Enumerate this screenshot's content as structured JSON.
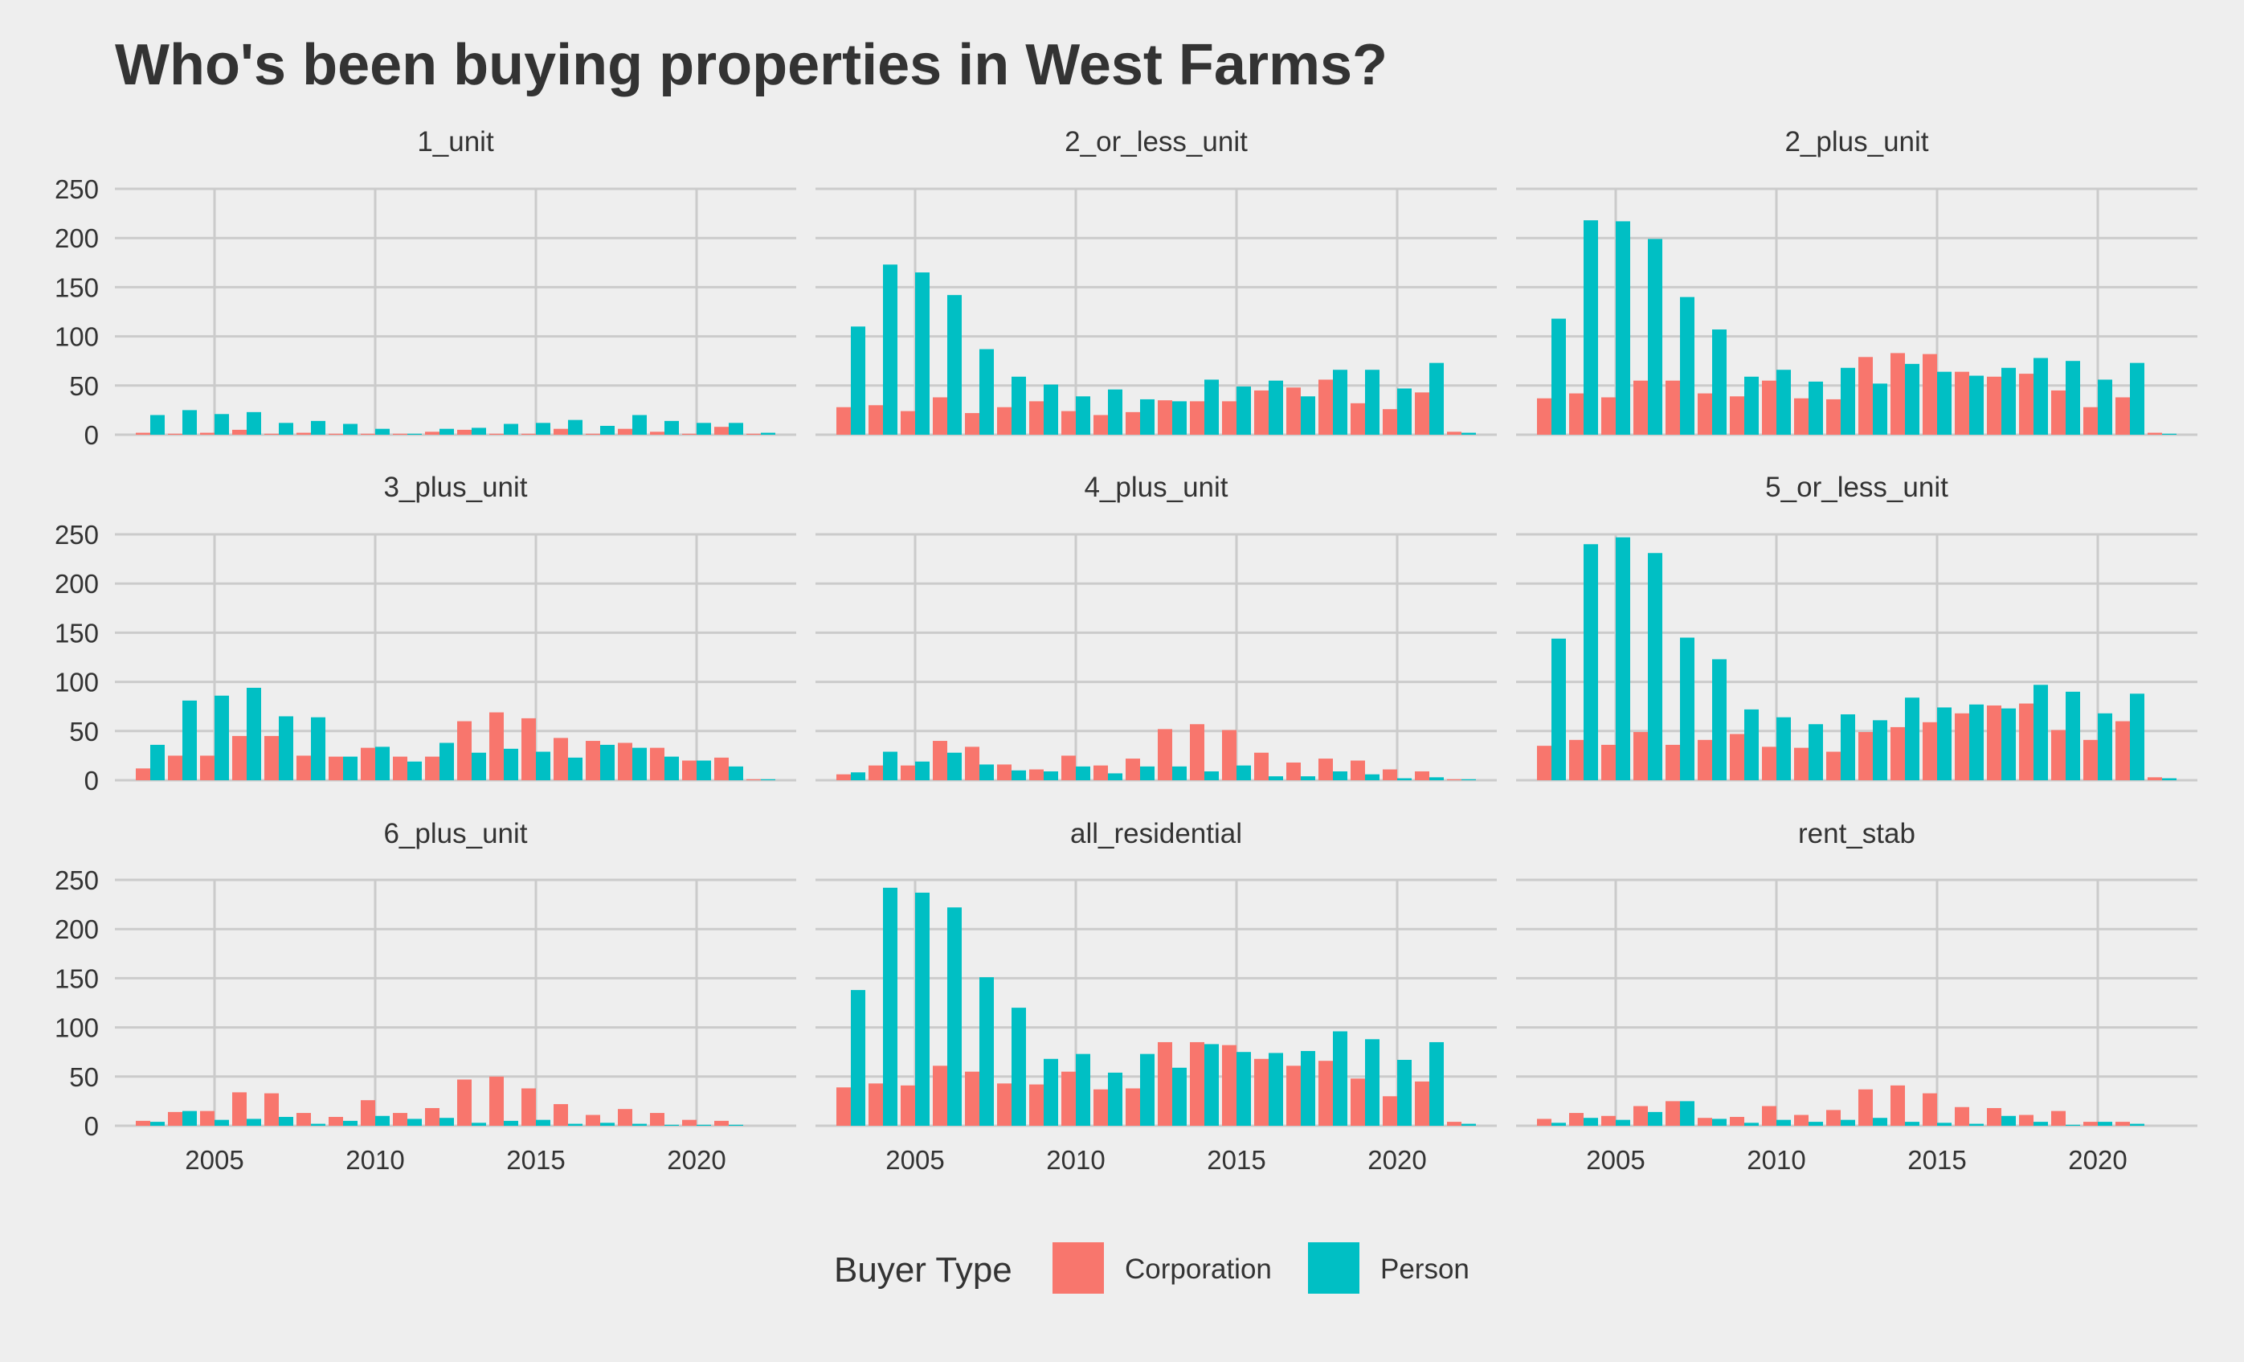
{
  "chart_data": {
    "type": "bar",
    "title": "Who's been buying properties in West Farms?",
    "legend": {
      "title": "Buyer Type",
      "position": "bottom",
      "entries": [
        {
          "name": "Corporation",
          "color": "#f8766d"
        },
        {
          "name": "Person",
          "color": "#00bfc4"
        }
      ]
    },
    "x": [
      2003,
      2004,
      2005,
      2006,
      2007,
      2008,
      2009,
      2010,
      2011,
      2012,
      2013,
      2014,
      2015,
      2016,
      2017,
      2018,
      2019,
      2020,
      2021,
      2022
    ],
    "xlim": [
      2001.9,
      2023.1
    ],
    "ylim": [
      0,
      250
    ],
    "x_ticks": [
      2005,
      2010,
      2015,
      2020
    ],
    "y_ticks": [
      0,
      50,
      100,
      150,
      200,
      250
    ],
    "grid": true,
    "facets": [
      {
        "name": "1_unit",
        "series": [
          {
            "name": "Corporation",
            "values": [
              2,
              1,
              2,
              5,
              1,
              2,
              1,
              1,
              1,
              3,
              5,
              1,
              1,
              6,
              1,
              6,
              3,
              1,
              8,
              1
            ]
          },
          {
            "name": "Person",
            "values": [
              20,
              25,
              21,
              23,
              12,
              14,
              11,
              6,
              1,
              6,
              7,
              11,
              12,
              15,
              9,
              20,
              14,
              12,
              12,
              2
            ]
          }
        ]
      },
      {
        "name": "2_or_less_unit",
        "series": [
          {
            "name": "Corporation",
            "values": [
              28,
              30,
              24,
              38,
              22,
              28,
              34,
              24,
              20,
              23,
              35,
              34,
              34,
              45,
              48,
              56,
              32,
              26,
              43,
              3
            ]
          },
          {
            "name": "Person",
            "values": [
              110,
              173,
              165,
              142,
              87,
              59,
              51,
              39,
              46,
              36,
              34,
              56,
              49,
              55,
              39,
              66,
              66,
              47,
              73,
              2
            ]
          }
        ]
      },
      {
        "name": "2_plus_unit",
        "series": [
          {
            "name": "Corporation",
            "values": [
              37,
              42,
              38,
              55,
              55,
              42,
              39,
              55,
              37,
              36,
              79,
              83,
              82,
              64,
              59,
              62,
              45,
              28,
              38,
              2
            ]
          },
          {
            "name": "Person",
            "values": [
              118,
              218,
              217,
              199,
              140,
              107,
              59,
              66,
              54,
              68,
              52,
              72,
              64,
              60,
              68,
              78,
              75,
              56,
              73,
              1
            ]
          }
        ]
      },
      {
        "name": "3_plus_unit",
        "series": [
          {
            "name": "Corporation",
            "values": [
              12,
              25,
              25,
              45,
              45,
              25,
              24,
              33,
              24,
              24,
              60,
              69,
              63,
              43,
              40,
              38,
              33,
              20,
              23,
              1
            ]
          },
          {
            "name": "Person",
            "values": [
              36,
              81,
              86,
              94,
              65,
              64,
              24,
              34,
              19,
              38,
              28,
              32,
              29,
              23,
              36,
              33,
              24,
              20,
              14,
              1
            ]
          }
        ]
      },
      {
        "name": "4_plus_unit",
        "series": [
          {
            "name": "Corporation",
            "values": [
              6,
              15,
              15,
              40,
              34,
              16,
              11,
              25,
              15,
              22,
              52,
              57,
              51,
              28,
              18,
              22,
              20,
              11,
              9,
              1
            ]
          },
          {
            "name": "Person",
            "values": [
              8,
              29,
              19,
              28,
              16,
              10,
              9,
              14,
              7,
              14,
              14,
              9,
              15,
              4,
              4,
              9,
              6,
              2,
              3,
              1
            ]
          }
        ]
      },
      {
        "name": "5_or_less_unit",
        "series": [
          {
            "name": "Corporation",
            "values": [
              35,
              41,
              36,
              49,
              36,
              41,
              47,
              34,
              33,
              29,
              49,
              54,
              59,
              68,
              76,
              78,
              51,
              41,
              60,
              3
            ]
          },
          {
            "name": "Person",
            "values": [
              144,
              240,
              247,
              231,
              145,
              123,
              72,
              64,
              57,
              67,
              61,
              84,
              74,
              77,
              73,
              97,
              90,
              68,
              88,
              2
            ]
          }
        ]
      },
      {
        "name": "6_plus_unit",
        "series": [
          {
            "name": "Corporation",
            "values": [
              5,
              14,
              15,
              34,
              33,
              13,
              9,
              26,
              13,
              18,
              47,
              50,
              38,
              22,
              11,
              17,
              13,
              6,
              5,
              0
            ]
          },
          {
            "name": "Person",
            "values": [
              4,
              15,
              6,
              7,
              9,
              2,
              5,
              10,
              7,
              8,
              3,
              5,
              6,
              2,
              3,
              2,
              1,
              1,
              1,
              0
            ]
          }
        ]
      },
      {
        "name": "all_residential",
        "series": [
          {
            "name": "Corporation",
            "values": [
              39,
              43,
              41,
              61,
              55,
              43,
              42,
              55,
              37,
              38,
              85,
              85,
              82,
              68,
              61,
              66,
              48,
              30,
              45,
              4
            ]
          },
          {
            "name": "Person",
            "values": [
              138,
              242,
              237,
              222,
              151,
              120,
              68,
              73,
              54,
              73,
              59,
              83,
              75,
              74,
              76,
              96,
              88,
              67,
              85,
              2
            ]
          }
        ]
      },
      {
        "name": "rent_stab",
        "series": [
          {
            "name": "Corporation",
            "values": [
              7,
              13,
              10,
              20,
              25,
              8,
              9,
              20,
              11,
              16,
              37,
              41,
              33,
              19,
              18,
              11,
              15,
              4,
              4,
              0
            ]
          },
          {
            "name": "Person",
            "values": [
              3,
              8,
              6,
              14,
              25,
              7,
              3,
              6,
              4,
              6,
              8,
              4,
              3,
              2,
              10,
              4,
              1,
              4,
              2,
              0
            ]
          }
        ]
      }
    ]
  }
}
